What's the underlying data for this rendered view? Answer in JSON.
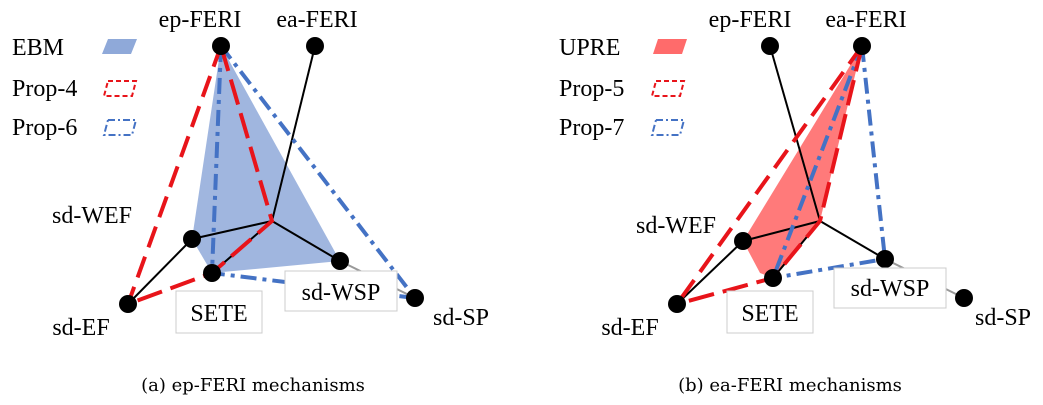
{
  "panels": [
    {
      "caption": "(a) ep-FERI mechanisms",
      "nodes": {
        "ep_feri": "ep-FERI",
        "ea_feri": "ea-FERI",
        "sd_wef": "sd-WEF",
        "sd_ef": "sd-EF",
        "sete": "SETE",
        "sd_wsp": "sd-WSP",
        "sd_sp": "sd-SP"
      },
      "legend": [
        {
          "label": "EBM",
          "style": "filled",
          "color": "#8fa9d9"
        },
        {
          "label": "Prop-4",
          "style": "dashed",
          "color": "#e8141a"
        },
        {
          "label": "Prop-6",
          "style": "dashdot",
          "color": "#4472c4"
        }
      ]
    },
    {
      "caption": "(b) ea-FERI mechanisms",
      "nodes": {
        "ep_feri": "ep-FERI",
        "ea_feri": "ea-FERI",
        "sd_wef": "sd-WEF",
        "sd_ef": "sd-EF",
        "sete": "SETE",
        "sd_wsp": "sd-WSP",
        "sd_sp": "sd-SP"
      },
      "legend": [
        {
          "label": "UPRE",
          "style": "filled",
          "color": "#ff6b6b"
        },
        {
          "label": "Prop-5",
          "style": "dashed",
          "color": "#e8141a"
        },
        {
          "label": "Prop-7",
          "style": "dashdot",
          "color": "#4472c4"
        }
      ]
    }
  ]
}
